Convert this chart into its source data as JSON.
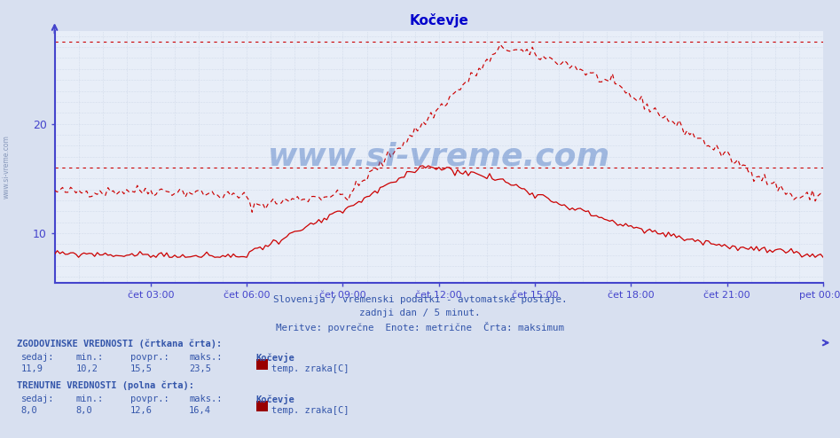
{
  "title": "Kočevje",
  "title_color": "#0000cc",
  "bg_color": "#d8e0f0",
  "plot_bg_color": "#e8eef8",
  "grid_color": "#aabbcc",
  "axis_color": "#4444cc",
  "line_color": "#cc0000",
  "text_color": "#3355aa",
  "xlim_min": 0,
  "xlim_max": 288,
  "ylim_min": 5.5,
  "ylim_max": 28.5,
  "yticks": [
    10,
    20
  ],
  "xtick_positions": [
    36,
    72,
    108,
    144,
    180,
    216,
    252,
    288
  ],
  "xtick_labels": [
    "čet 03:00",
    "čet 06:00",
    "čet 09:00",
    "čet 12:00",
    "čet 15:00",
    "čet 18:00",
    "čet 21:00",
    "pet 00:00"
  ],
  "hline_top_y": 27.5,
  "hline_mid_y": 16.0,
  "subtitle1": "Slovenija / vremenski podatki - avtomatske postaje.",
  "subtitle2": "zadnji dan / 5 minut.",
  "subtitle3": "Meritve: povrečne  Enote: metrične  Črta: maksimum",
  "watermark": "www.si-vreme.com",
  "label_hist": "ZGODOVINSKE VREDNOSTI (črtkana črta):",
  "label_curr": "TRENUTNE VREDNOSTI (polna črta):",
  "hist_sedaj": "11,9",
  "hist_min": "10,2",
  "hist_povpr": "15,5",
  "hist_maks": "23,5",
  "curr_sedaj": "8,0",
  "curr_min": "8,0",
  "curr_povpr": "12,6",
  "curr_maks": "16,4",
  "station": "Kočevje",
  "param": "temp. zraka[C]",
  "col_headers": [
    "sedaj:",
    "min.:",
    "povpr.:",
    "maks.:"
  ],
  "box_color": "#990000"
}
